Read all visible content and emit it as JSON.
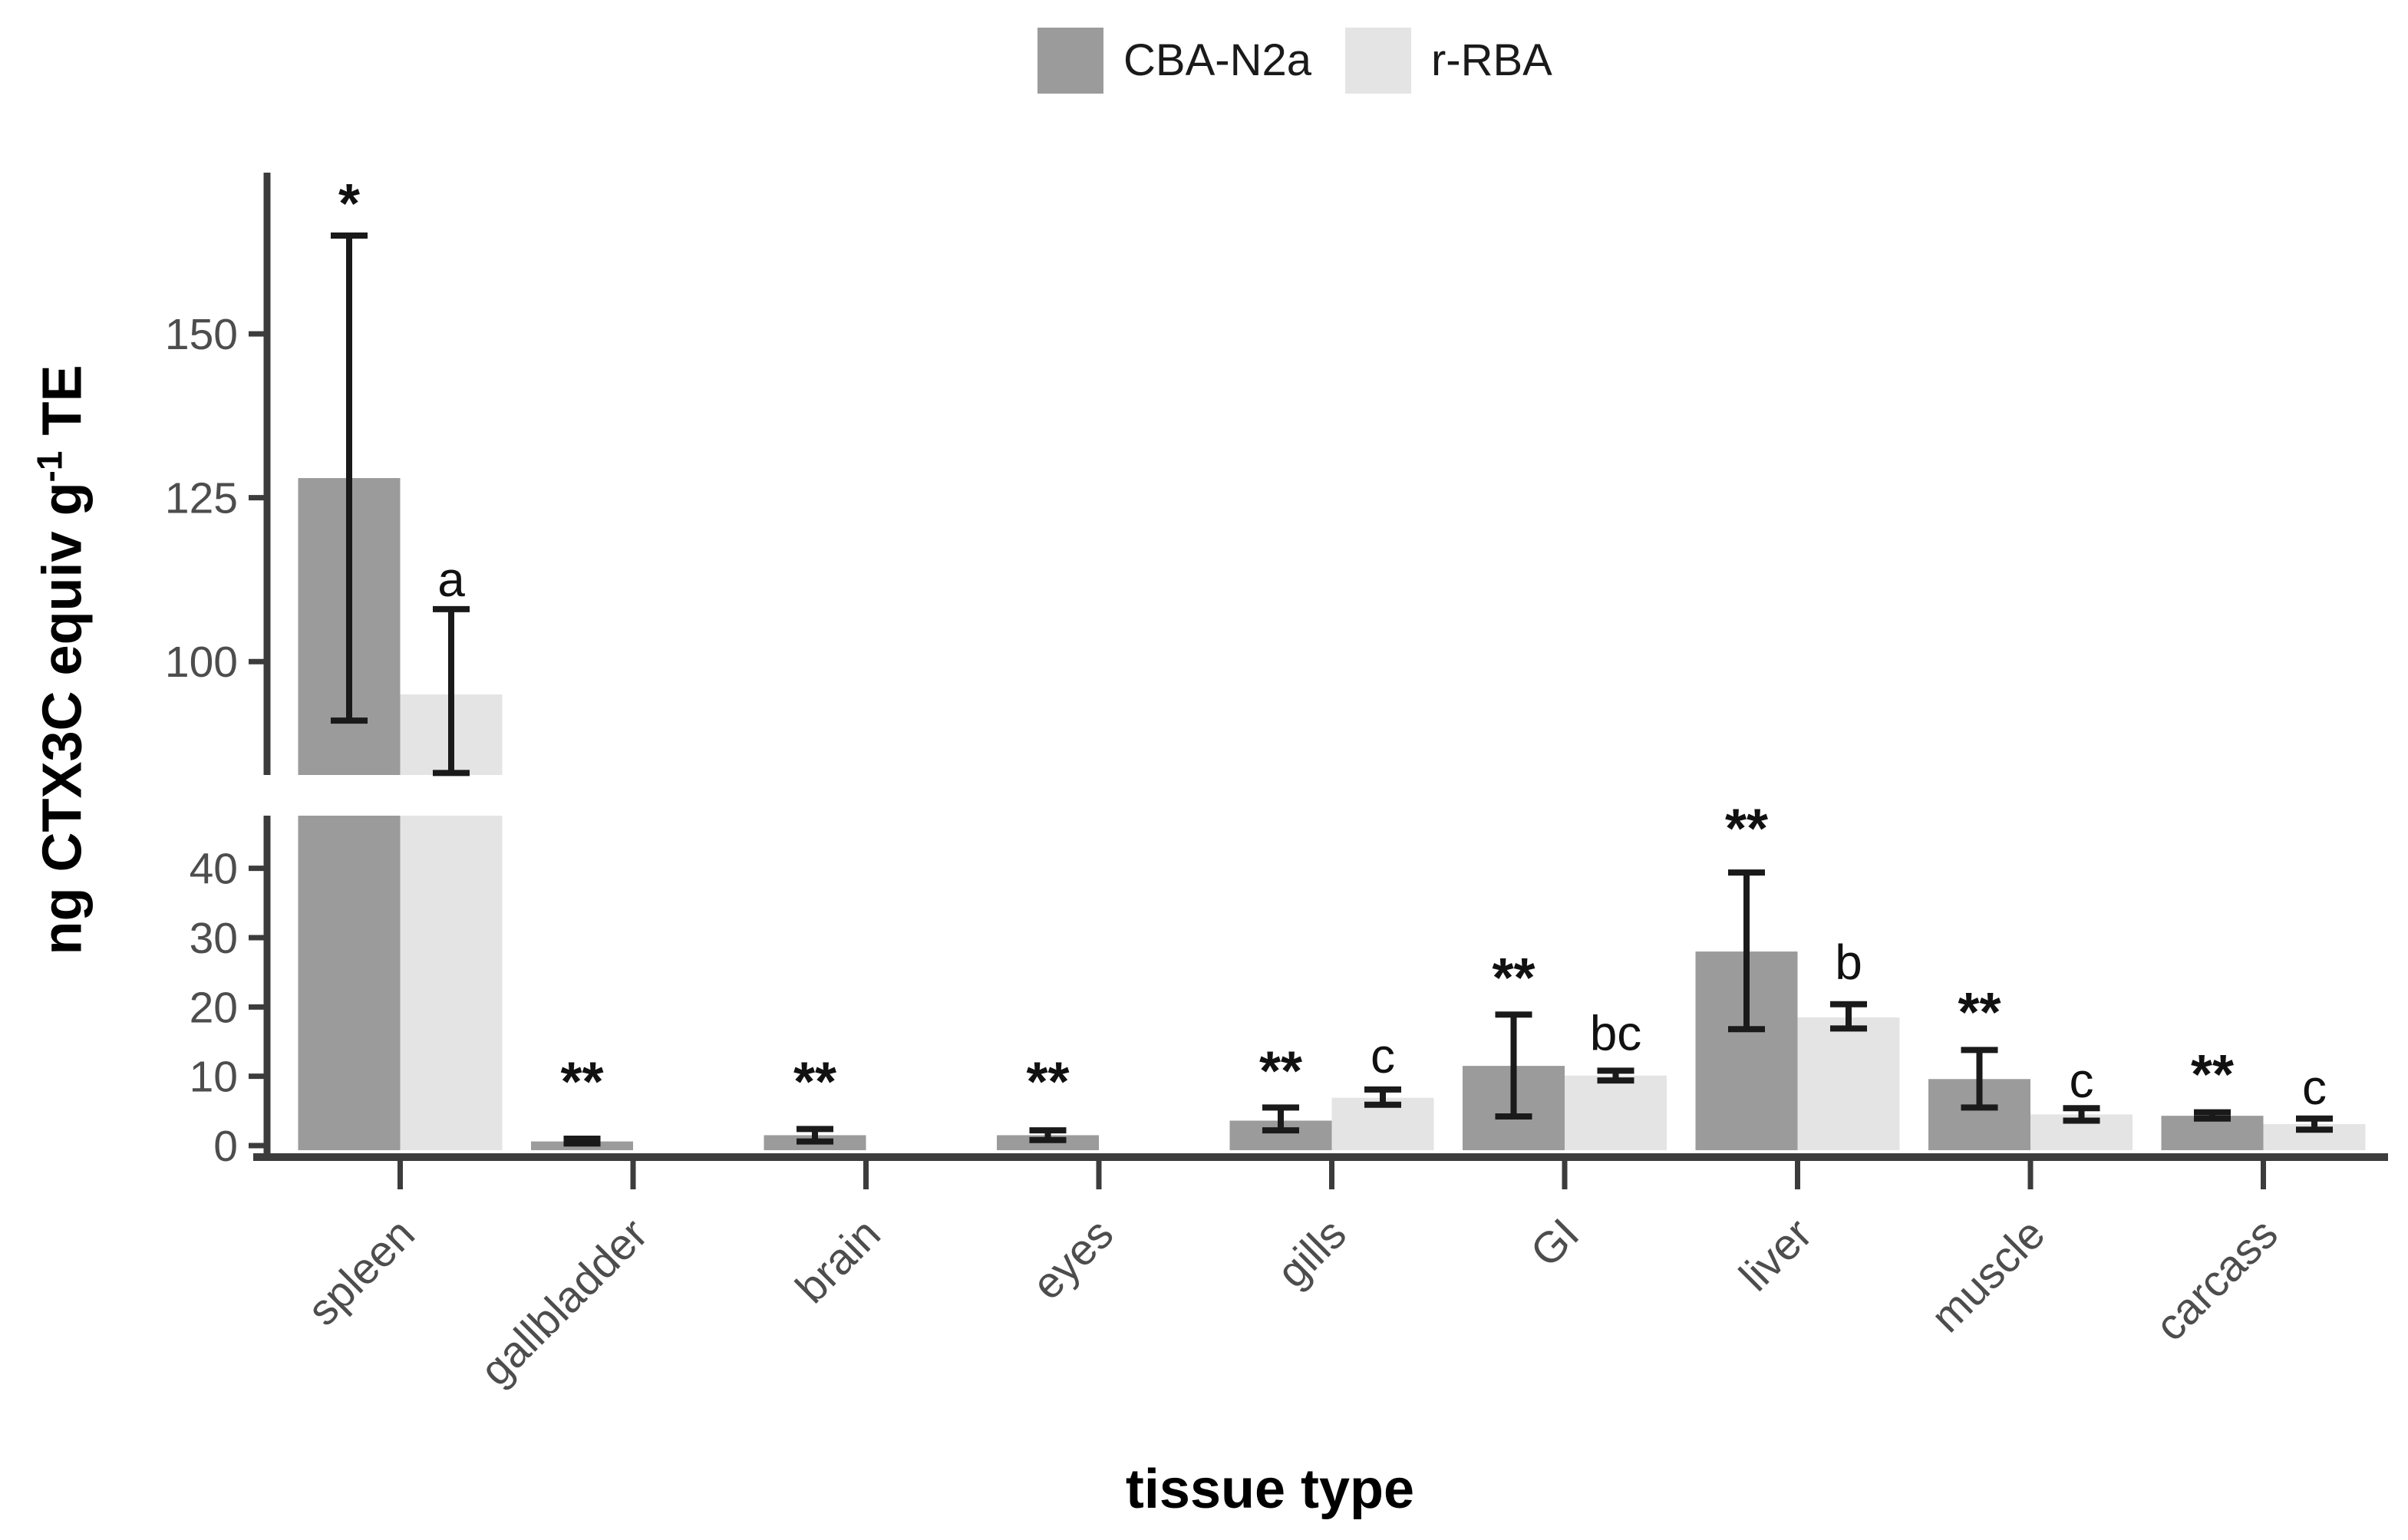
{
  "legend": {
    "items": [
      {
        "label": "CBA-N2a",
        "color": "#9b9b9b"
      },
      {
        "label": "r-RBA",
        "color": "#e4e4e4"
      }
    ]
  },
  "y_axis": {
    "label_prefix": "ng CTX3C equiv g",
    "label_sup": "-1",
    "label_suffix": " TE",
    "upper_ticks": [
      150,
      125,
      100
    ],
    "lower_ticks": [
      40,
      30,
      20,
      10,
      0
    ]
  },
  "x_axis": {
    "label": "tissue type"
  },
  "colors": {
    "cba": "#9b9b9b",
    "rba": "#e4e4e4",
    "axis": "#3c3c3c",
    "tick_text": "#4d4d4d",
    "annotation": "#111111",
    "error_bar": "#1a1a1a"
  },
  "chart_data": {
    "type": "bar",
    "title": "",
    "xlabel": "tissue type",
    "ylabel": "ng CTX3C equiv g-1 TE",
    "grid": false,
    "legend_position": "top-center",
    "axis_break": true,
    "upper_axis_range": [
      82.7,
      174.6
    ],
    "lower_axis_range": [
      0,
      47.6
    ],
    "upper_ticks": [
      150,
      125,
      100
    ],
    "lower_ticks": [
      40,
      30,
      20,
      10,
      0
    ],
    "categories": [
      "spleen",
      "gallbladder",
      "brain",
      "eyes",
      "gills",
      "GI",
      "liver",
      "muscle",
      "carcass"
    ],
    "series": [
      {
        "name": "CBA-N2a",
        "color": "#9b9b9b",
        "values": [
          128,
          0.6,
          1.5,
          1.5,
          3.6,
          11.5,
          28,
          9.6,
          4.3
        ],
        "error_low": [
          91,
          0.3,
          0.6,
          0.8,
          2.2,
          4.2,
          16.8,
          5.5,
          3.9
        ],
        "error_high": [
          165,
          1.0,
          2.4,
          2.2,
          5.5,
          18.9,
          39.4,
          13.8,
          4.8
        ],
        "sig_labels": [
          "*",
          "**",
          "**",
          "**",
          "**",
          "**",
          "**",
          "**",
          "**"
        ],
        "sig_label_y": [
          167,
          6.5,
          6.5,
          6.5,
          8,
          21.5,
          43,
          16.5,
          7.5
        ]
      },
      {
        "name": "r-RBA",
        "color": "#e4e4e4",
        "values": [
          95,
          null,
          null,
          null,
          6.9,
          10.1,
          18.5,
          4.5,
          3.1
        ],
        "error_low": [
          83,
          null,
          null,
          null,
          5.9,
          9.4,
          16.9,
          3.6,
          2.3
        ],
        "error_high": [
          108,
          null,
          null,
          null,
          8.1,
          10.8,
          20.4,
          5.4,
          3.9
        ],
        "sig_labels": [
          "a",
          null,
          null,
          null,
          "c",
          "bc",
          "b",
          "c",
          "c"
        ],
        "sig_label_y": [
          110,
          null,
          null,
          null,
          10.5,
          13.8,
          24,
          7,
          6
        ]
      }
    ]
  }
}
